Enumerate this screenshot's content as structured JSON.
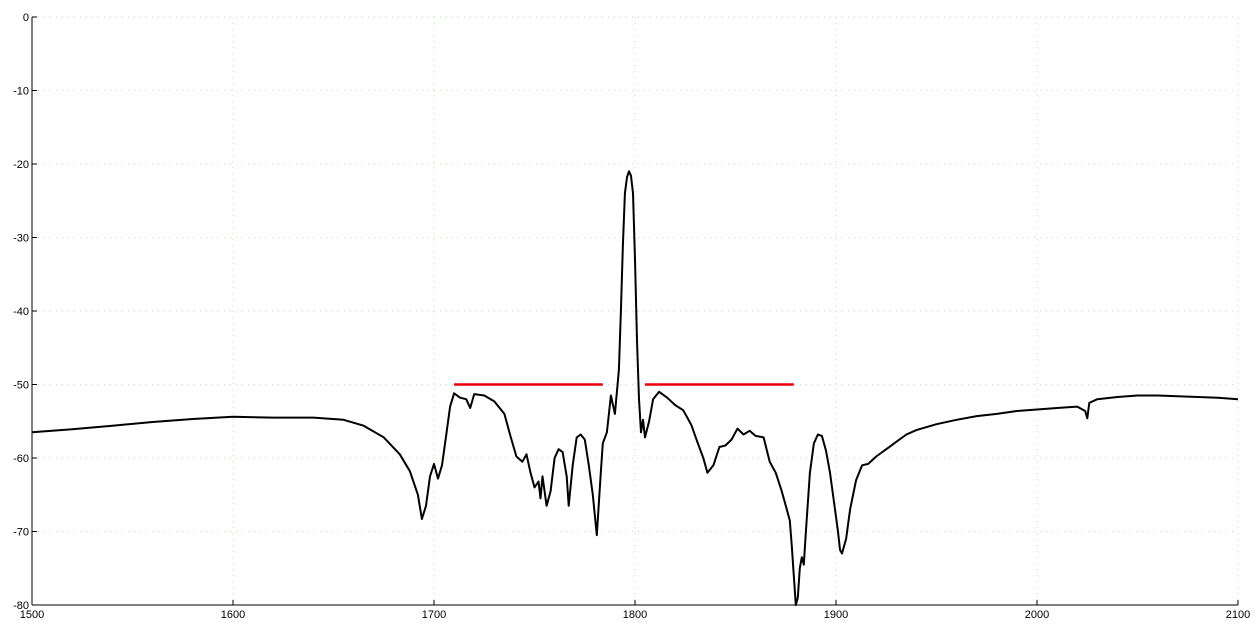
{
  "chart_data": {
    "type": "line",
    "title": "",
    "xlabel": "",
    "ylabel": "",
    "xlim": [
      1500,
      2100
    ],
    "ylim": [
      -80,
      0
    ],
    "x_ticks": [
      1500,
      1600,
      1700,
      1800,
      1900,
      2000,
      2100
    ],
    "y_ticks": [
      0,
      -10,
      -20,
      -30,
      -40,
      -50,
      -60,
      -70,
      -80
    ],
    "grid": true,
    "colors": {
      "series": "#000000",
      "mask": "#e8000b",
      "grid": "#b6e3b6"
    },
    "series": [
      {
        "type": "line",
        "color": "#000000",
        "points": [
          [
            1500,
            -56.5
          ],
          [
            1520,
            -56.1
          ],
          [
            1540,
            -55.6
          ],
          [
            1560,
            -55.1
          ],
          [
            1580,
            -54.7
          ],
          [
            1600,
            -54.4
          ],
          [
            1620,
            -54.5
          ],
          [
            1640,
            -54.5
          ],
          [
            1655,
            -54.8
          ],
          [
            1665,
            -55.6
          ],
          [
            1675,
            -57.2
          ],
          [
            1683,
            -59.5
          ],
          [
            1688,
            -61.8
          ],
          [
            1692,
            -65.0
          ],
          [
            1694,
            -68.3
          ],
          [
            1696,
            -66.5
          ],
          [
            1698,
            -62.5
          ],
          [
            1700,
            -60.8
          ],
          [
            1702,
            -62.8
          ],
          [
            1704,
            -61.0
          ],
          [
            1706,
            -57.0
          ],
          [
            1708,
            -53.0
          ],
          [
            1710,
            -51.2
          ],
          [
            1713,
            -51.8
          ],
          [
            1716,
            -52.0
          ],
          [
            1718,
            -53.2
          ],
          [
            1720,
            -51.3
          ],
          [
            1725,
            -51.5
          ],
          [
            1730,
            -52.3
          ],
          [
            1735,
            -54.0
          ],
          [
            1738,
            -57.0
          ],
          [
            1741,
            -59.8
          ],
          [
            1744,
            -60.5
          ],
          [
            1746,
            -59.5
          ],
          [
            1748,
            -62.0
          ],
          [
            1750,
            -64.0
          ],
          [
            1752,
            -63.2
          ],
          [
            1753,
            -65.5
          ],
          [
            1754,
            -62.5
          ],
          [
            1756,
            -66.5
          ],
          [
            1758,
            -64.5
          ],
          [
            1760,
            -60.0
          ],
          [
            1762,
            -58.8
          ],
          [
            1764,
            -59.2
          ],
          [
            1766,
            -62.5
          ],
          [
            1767,
            -66.5
          ],
          [
            1769,
            -61.0
          ],
          [
            1771,
            -57.2
          ],
          [
            1773,
            -56.8
          ],
          [
            1775,
            -57.5
          ],
          [
            1777,
            -61.0
          ],
          [
            1779,
            -65.0
          ],
          [
            1781,
            -70.5
          ],
          [
            1783,
            -62.0
          ],
          [
            1784,
            -58.0
          ],
          [
            1786,
            -56.5
          ],
          [
            1788,
            -51.5
          ],
          [
            1790,
            -54.0
          ],
          [
            1792,
            -48.0
          ],
          [
            1793,
            -40.0
          ],
          [
            1794,
            -31.0
          ],
          [
            1795,
            -24.0
          ],
          [
            1796,
            -21.8
          ],
          [
            1797,
            -21.0
          ],
          [
            1798,
            -21.6
          ],
          [
            1799,
            -24.0
          ],
          [
            1800,
            -33.0
          ],
          [
            1801,
            -44.0
          ],
          [
            1802,
            -52.0
          ],
          [
            1803,
            -56.5
          ],
          [
            1804,
            -54.8
          ],
          [
            1805,
            -57.2
          ],
          [
            1807,
            -55.0
          ],
          [
            1809,
            -52.0
          ],
          [
            1812,
            -51.0
          ],
          [
            1816,
            -51.8
          ],
          [
            1820,
            -52.8
          ],
          [
            1824,
            -53.5
          ],
          [
            1828,
            -55.5
          ],
          [
            1831,
            -57.8
          ],
          [
            1834,
            -60.0
          ],
          [
            1836,
            -62.0
          ],
          [
            1839,
            -61.0
          ],
          [
            1842,
            -58.5
          ],
          [
            1845,
            -58.3
          ],
          [
            1848,
            -57.5
          ],
          [
            1851,
            -56.0
          ],
          [
            1854,
            -56.8
          ],
          [
            1857,
            -56.3
          ],
          [
            1860,
            -57.0
          ],
          [
            1864,
            -57.2
          ],
          [
            1867,
            -60.5
          ],
          [
            1870,
            -62.0
          ],
          [
            1873,
            -64.5
          ],
          [
            1875,
            -66.5
          ],
          [
            1877,
            -68.5
          ],
          [
            1878,
            -72.0
          ],
          [
            1879,
            -76.0
          ],
          [
            1880,
            -80.0
          ],
          [
            1881,
            -79.0
          ],
          [
            1882,
            -75.0
          ],
          [
            1883,
            -73.5
          ],
          [
            1884,
            -74.5
          ],
          [
            1885,
            -70.0
          ],
          [
            1887,
            -62.0
          ],
          [
            1889,
            -58.0
          ],
          [
            1891,
            -56.8
          ],
          [
            1893,
            -57.0
          ],
          [
            1895,
            -59.0
          ],
          [
            1897,
            -62.0
          ],
          [
            1899,
            -66.0
          ],
          [
            1901,
            -70.0
          ],
          [
            1902,
            -72.5
          ],
          [
            1903,
            -73.0
          ],
          [
            1905,
            -71.0
          ],
          [
            1907,
            -67.0
          ],
          [
            1910,
            -63.0
          ],
          [
            1913,
            -61.0
          ],
          [
            1916,
            -60.8
          ],
          [
            1920,
            -59.8
          ],
          [
            1925,
            -58.8
          ],
          [
            1930,
            -57.8
          ],
          [
            1935,
            -56.8
          ],
          [
            1940,
            -56.2
          ],
          [
            1950,
            -55.4
          ],
          [
            1960,
            -54.8
          ],
          [
            1970,
            -54.3
          ],
          [
            1980,
            -54.0
          ],
          [
            1990,
            -53.6
          ],
          [
            2000,
            -53.4
          ],
          [
            2010,
            -53.2
          ],
          [
            2020,
            -53.0
          ],
          [
            2024,
            -53.6
          ],
          [
            2025,
            -54.6
          ],
          [
            2026,
            -52.5
          ],
          [
            2030,
            -52.0
          ],
          [
            2040,
            -51.7
          ],
          [
            2050,
            -51.5
          ],
          [
            2060,
            -51.5
          ],
          [
            2070,
            -51.6
          ],
          [
            2080,
            -51.7
          ],
          [
            2090,
            -51.8
          ],
          [
            2100,
            -52.0
          ]
        ]
      },
      {
        "type": "mask",
        "color": "#e8000b",
        "segments": [
          [
            [
              1710,
              -50
            ],
            [
              1784,
              -50
            ]
          ],
          [
            [
              1805,
              -50
            ],
            [
              1879,
              -50
            ]
          ]
        ]
      }
    ]
  }
}
